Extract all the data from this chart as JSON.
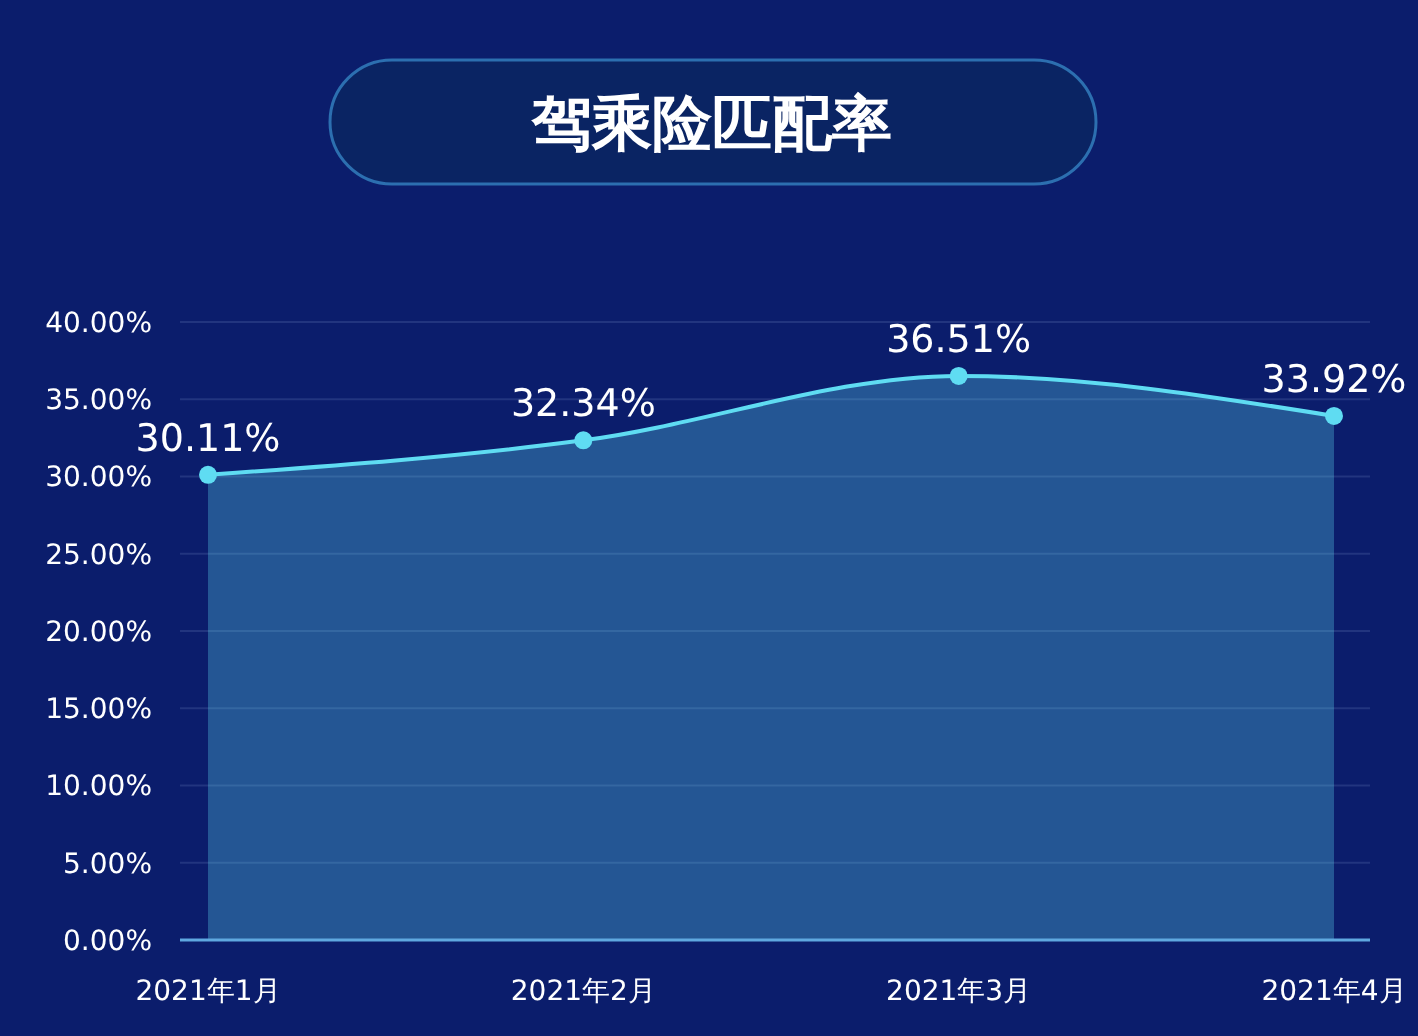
{
  "chart_data": {
    "type": "area",
    "title": "驾乘险匹配率",
    "categories": [
      "2021年1月",
      "2021年2月",
      "2021年3月",
      "2021年4月"
    ],
    "series": [
      {
        "color": "#5fdcf2",
        "values": [
          30.11,
          32.34,
          36.51,
          33.92
        ],
        "value_labels": [
          "30.11%",
          "32.34%",
          "36.51%",
          "33.92%"
        ]
      }
    ],
    "ylim": [
      0,
      40
    ],
    "yticks": [
      {
        "value": 0,
        "label": "0.00%"
      },
      {
        "value": 5,
        "label": "5.00%"
      },
      {
        "value": 10,
        "label": "10.00%"
      },
      {
        "value": 15,
        "label": "15.00%"
      },
      {
        "value": 20,
        "label": "20.00%"
      },
      {
        "value": 25,
        "label": "25.00%"
      },
      {
        "value": 30,
        "label": "30.00%"
      },
      {
        "value": 35,
        "label": "35.00%"
      },
      {
        "value": 40,
        "label": "40.00%"
      }
    ],
    "grid": "y",
    "marker": "circle"
  }
}
